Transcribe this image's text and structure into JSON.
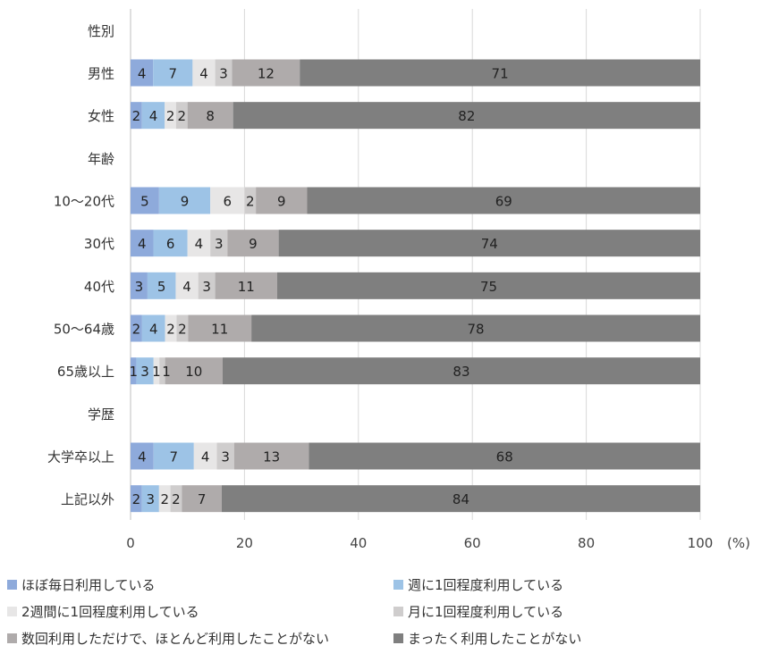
{
  "chart_data": {
    "type": "bar",
    "orientation": "horizontal",
    "stacked": true,
    "categories": [
      "性別",
      "男性",
      "女性",
      "年齢",
      "10～20代",
      "30代",
      "40代",
      "50～64歳",
      "65歳以上",
      "学歴",
      "大学卒以上",
      "上記以外"
    ],
    "series": [
      {
        "name": "ほぼ毎日利用している",
        "color": "#8eaadb",
        "values": [
          null,
          4,
          2,
          null,
          5,
          4,
          3,
          2,
          1,
          null,
          4,
          2
        ]
      },
      {
        "name": "週に1回程度利用している",
        "color": "#9dc3e6",
        "values": [
          null,
          7,
          4,
          null,
          9,
          6,
          5,
          4,
          3,
          null,
          7,
          3
        ]
      },
      {
        "name": "2週間に1回程度利用している",
        "color": "#e7e6e6",
        "values": [
          null,
          4,
          2,
          null,
          6,
          4,
          4,
          2,
          1,
          null,
          4,
          2
        ]
      },
      {
        "name": "月に1回程度利用している",
        "color": "#cfcdcd",
        "values": [
          null,
          3,
          2,
          null,
          2,
          3,
          3,
          2,
          1,
          null,
          3,
          2
        ]
      },
      {
        "name": "数回利用しただけで、ほとんど利用したことがない",
        "color": "#afabab",
        "values": [
          null,
          12,
          8,
          null,
          9,
          9,
          11,
          11,
          10,
          null,
          13,
          7
        ]
      },
      {
        "name": "まったく利用したことがない",
        "color": "#7f7f7f",
        "values": [
          null,
          71,
          82,
          null,
          69,
          74,
          75,
          78,
          83,
          null,
          68,
          84
        ]
      }
    ],
    "xlim": [
      0,
      100
    ],
    "xticks": [
      "0",
      "20",
      "40",
      "60",
      "80",
      "100"
    ],
    "xunit": "(%)",
    "grid": true,
    "legend_position": "bottom"
  }
}
